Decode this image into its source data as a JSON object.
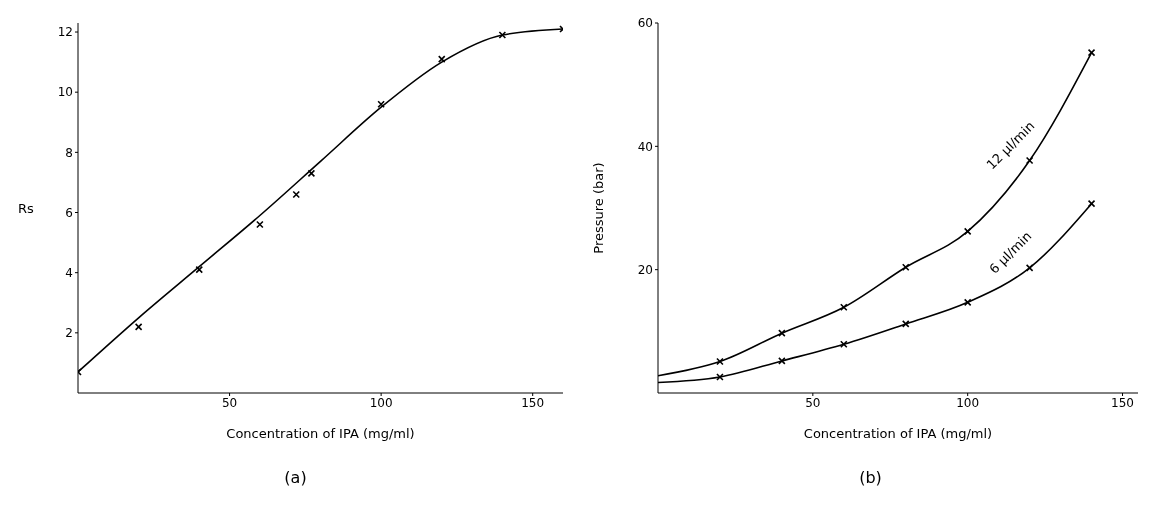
{
  "chart_data": [
    {
      "type": "scatter",
      "xlabel": "Concentration of IPA (mg/ml)",
      "ylabel": "Rs",
      "annotations": [
        "(a)"
      ],
      "xlim": [
        0,
        160
      ],
      "ylim": [
        0,
        12.3
      ],
      "xticks": [
        50,
        100,
        150
      ],
      "yticks": [
        2,
        4,
        6,
        8,
        10,
        12
      ],
      "grid": false,
      "legend": false,
      "marker": "cross",
      "series": [
        {
          "type": "line",
          "marker": "none",
          "color": "#000000",
          "x": [
            0,
            20,
            40,
            60,
            80,
            100,
            120,
            140,
            160
          ],
          "values": [
            0.7,
            2.5,
            4.2,
            5.9,
            7.7,
            9.5,
            11.0,
            11.9,
            12.1
          ]
        },
        {
          "color": "#000000",
          "x": [
            0,
            20,
            40,
            60,
            72,
            77,
            100,
            120,
            140,
            160
          ],
          "values": [
            0.7,
            2.2,
            4.1,
            5.6,
            6.6,
            7.3,
            9.6,
            11.1,
            11.9,
            12.1
          ]
        }
      ]
    },
    {
      "type": "scatter",
      "xlabel": "Concentration of IPA (mg/ml)",
      "ylabel": "Pressure (bar)",
      "annotations": [
        "(b)"
      ],
      "xlim": [
        0,
        155
      ],
      "ylim": [
        0,
        60
      ],
      "xticks": [
        50,
        100,
        150
      ],
      "yticks": [
        20,
        40,
        60
      ],
      "grid": false,
      "legend": false,
      "marker": "cross",
      "series": [
        {
          "type": "line",
          "name": "12 µl/min",
          "marker": "none",
          "color": "#000000",
          "x": [
            0,
            20,
            40,
            60,
            80,
            100,
            120,
            140
          ],
          "values": [
            2.8,
            5.1,
            9.7,
            13.9,
            20.4,
            26.2,
            37.7,
            55.2
          ]
        },
        {
          "type": "line",
          "name": "6 µl/min",
          "marker": "none",
          "color": "#000000",
          "x": [
            0,
            20,
            40,
            60,
            80,
            100,
            120,
            140
          ],
          "values": [
            1.7,
            2.6,
            5.2,
            7.9,
            11.2,
            14.7,
            20.3,
            30.7
          ]
        },
        {
          "color": "#000000",
          "x": [
            20,
            40,
            60,
            80,
            100,
            120,
            140
          ],
          "values": [
            5.1,
            9.7,
            13.9,
            20.4,
            26.2,
            37.7,
            55.2
          ]
        },
        {
          "color": "#000000",
          "x": [
            20,
            40,
            60,
            80,
            100,
            120,
            140
          ],
          "values": [
            2.6,
            5.2,
            7.9,
            11.2,
            14.7,
            20.3,
            30.7
          ]
        }
      ]
    }
  ]
}
